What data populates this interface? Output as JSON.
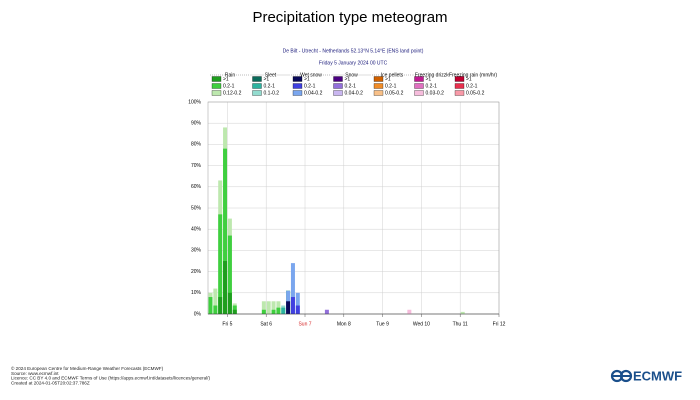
{
  "chart_data": {
    "type": "bar",
    "title": "Precipitation type meteogram",
    "subtitle": "De Bilt - Utrecht - Netherlands 52.13°N 5.14°E (ENS land point)",
    "subtitle2": "Friday 5 January 2024 00 UTC",
    "x": [
      0,
      3,
      6,
      9,
      12,
      15,
      33,
      36,
      39,
      42,
      45,
      48,
      51,
      54,
      72,
      123,
      156
    ],
    "xlim": [
      0,
      180
    ],
    "xticks": [
      {
        "value": 12,
        "label": "Fri 5"
      },
      {
        "value": 36,
        "label": "Sat 6"
      },
      {
        "value": 60,
        "label": "Sun 7",
        "color": "#d62728"
      },
      {
        "value": 84,
        "label": "Mon 8"
      },
      {
        "value": 108,
        "label": "Tue 9"
      },
      {
        "value": 132,
        "label": "Wed 10"
      },
      {
        "value": 156,
        "label": "Thu 11"
      },
      {
        "value": 180,
        "label": "Fri 12"
      }
    ],
    "ylim": [
      0,
      100
    ],
    "yticks": [
      {
        "value": 0,
        "label": "0%"
      },
      {
        "value": 10,
        "label": "10%"
      },
      {
        "value": 20,
        "label": "20%"
      },
      {
        "value": 30,
        "label": "30%"
      },
      {
        "value": 40,
        "label": "40%"
      },
      {
        "value": 50,
        "label": "50%"
      },
      {
        "value": 60,
        "label": "60%"
      },
      {
        "value": 70,
        "label": "70%"
      },
      {
        "value": 80,
        "label": "80%"
      },
      {
        "value": 90,
        "label": "90%"
      },
      {
        "value": 100,
        "label": "100%"
      }
    ],
    "grid": true,
    "groups": [
      {
        "name": "Rain",
        "series": [
          {
            "name": ">1",
            "color": "#1e9e1e",
            "values": [
              null,
              null,
              8,
              25,
              10,
              2,
              null,
              null,
              null,
              null,
              null,
              null,
              null,
              null,
              null,
              null,
              null
            ]
          },
          {
            "name": "0.2-1",
            "color": "#3fcf3f",
            "values": [
              8,
              4,
              47,
              78,
              37,
              4,
              2,
              null,
              2,
              3,
              null,
              11,
              null,
              null,
              null,
              null,
              null
            ]
          },
          {
            "name": "0.12-0.2",
            "color": "#bde8ae",
            "values": [
              10,
              12,
              63,
              88,
              45,
              5,
              6,
              6,
              6,
              6,
              null,
              11,
              null,
              null,
              null,
              null,
              1
            ]
          }
        ]
      },
      {
        "name": "Sleet",
        "series": [
          {
            "name": ">1",
            "color": "#0b6b5a",
            "values": [
              null,
              null,
              null,
              null,
              null,
              null,
              null,
              null,
              null,
              null,
              null,
              null,
              null,
              null,
              null,
              null,
              null
            ]
          },
          {
            "name": "0.2-1",
            "color": "#2db4a0",
            "values": [
              null,
              null,
              null,
              null,
              null,
              null,
              null,
              null,
              null,
              null,
              3,
              null,
              null,
              null,
              null,
              null,
              null
            ]
          },
          {
            "name": "0.1-0.2",
            "color": "#93dccf",
            "values": [
              null,
              null,
              null,
              null,
              null,
              null,
              null,
              null,
              null,
              null,
              4,
              null,
              null,
              null,
              null,
              null,
              null
            ]
          }
        ]
      },
      {
        "name": "Wet snow",
        "series": [
          {
            "name": ">1",
            "color": "#0a0a5a",
            "values": [
              null,
              null,
              null,
              null,
              null,
              null,
              null,
              null,
              null,
              null,
              null,
              6,
              null,
              null,
              null,
              null,
              null
            ]
          },
          {
            "name": "0.2-1",
            "color": "#4040e0",
            "values": [
              null,
              null,
              null,
              null,
              null,
              null,
              null,
              null,
              null,
              null,
              null,
              null,
              8,
              4,
              null,
              null,
              null
            ]
          },
          {
            "name": "0.04-0.2",
            "color": "#7aa6ee",
            "values": [
              null,
              null,
              null,
              null,
              null,
              null,
              null,
              null,
              null,
              null,
              null,
              11,
              24,
              10,
              null,
              null,
              null
            ]
          }
        ]
      },
      {
        "name": "Snow",
        "series": [
          {
            "name": ">1",
            "color": "#4b0082",
            "values": [
              null,
              null,
              null,
              null,
              null,
              null,
              null,
              null,
              null,
              null,
              null,
              null,
              null,
              null,
              null,
              null,
              null
            ]
          },
          {
            "name": "0.2-1",
            "color": "#9370db",
            "values": [
              null,
              null,
              null,
              null,
              null,
              null,
              null,
              null,
              null,
              null,
              null,
              null,
              null,
              null,
              2,
              null,
              null
            ]
          },
          {
            "name": "0.04-0.2",
            "color": "#c9b6f0",
            "values": [
              null,
              null,
              null,
              null,
              null,
              null,
              null,
              null,
              null,
              null,
              null,
              null,
              null,
              null,
              null,
              null,
              null
            ]
          }
        ]
      },
      {
        "name": "Ice pellets",
        "series": [
          {
            "name": ">1",
            "color": "#d06000",
            "values": [
              null,
              null,
              null,
              null,
              null,
              null,
              null,
              null,
              null,
              null,
              null,
              null,
              null,
              null,
              null,
              null,
              null
            ]
          },
          {
            "name": "0.2-1",
            "color": "#f08c28",
            "values": [
              null,
              null,
              null,
              null,
              null,
              null,
              null,
              null,
              null,
              null,
              null,
              null,
              null,
              null,
              null,
              null,
              null
            ]
          },
          {
            "name": "0.05-0.2",
            "color": "#f8c088",
            "values": [
              null,
              null,
              null,
              null,
              null,
              null,
              null,
              null,
              null,
              null,
              null,
              null,
              null,
              null,
              null,
              null,
              null
            ]
          }
        ]
      },
      {
        "name": "Freezing drizzle",
        "series": [
          {
            "name": ">1",
            "color": "#c01890",
            "values": [
              null,
              null,
              null,
              null,
              null,
              null,
              null,
              null,
              null,
              null,
              null,
              null,
              null,
              null,
              null,
              null,
              null
            ]
          },
          {
            "name": "0.2-1",
            "color": "#e070c0",
            "values": [
              null,
              null,
              null,
              null,
              null,
              null,
              null,
              null,
              null,
              null,
              null,
              null,
              null,
              null,
              null,
              null,
              null
            ]
          },
          {
            "name": "0.03-0.2",
            "color": "#f6bcdc",
            "values": [
              null,
              null,
              null,
              null,
              null,
              null,
              null,
              null,
              null,
              null,
              null,
              null,
              null,
              null,
              null,
              2,
              null
            ]
          }
        ]
      },
      {
        "name": "Freezing rain (mm/hr)",
        "series": [
          {
            "name": ">1",
            "color": "#c00030",
            "values": [
              null,
              null,
              null,
              null,
              null,
              null,
              null,
              null,
              null,
              null,
              null,
              null,
              null,
              null,
              null,
              null,
              null
            ]
          },
          {
            "name": "0.2-1",
            "color": "#e8304e",
            "values": [
              null,
              null,
              null,
              null,
              null,
              null,
              null,
              null,
              null,
              null,
              null,
              null,
              null,
              null,
              null,
              null,
              null
            ]
          },
          {
            "name": "0.05-0.2",
            "color": "#f89aa8",
            "values": [
              null,
              null,
              null,
              null,
              null,
              null,
              null,
              null,
              null,
              null,
              null,
              null,
              null,
              null,
              null,
              null,
              null
            ]
          }
        ]
      }
    ]
  },
  "footer": [
    "© 2024 European Centre for Medium-Range Weather Forecasts (ECMWF)",
    "Source: www.ecmwf.int",
    "Licence: CC BY 4.0 and ECMWF Terms of Use (https://apps.ecmwf.int/datasets/licences/general/)",
    "Created at 2024-01-05T20:02:37.786Z"
  ],
  "logo": "ECMWF"
}
